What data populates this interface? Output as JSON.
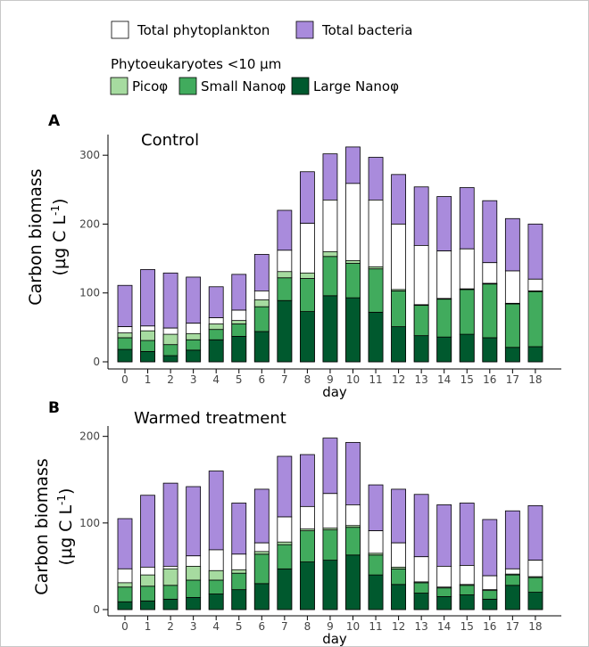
{
  "legend": {
    "total_phyto": "Total phytoplankton",
    "total_bact": "Total bacteria",
    "group_title": "Phytoeukaryotes <10 µm",
    "pico": "Picoφ",
    "small": "Small Nanoφ",
    "large": "Large Nanoφ"
  },
  "colors": {
    "total_phyto": "#ffffff",
    "total_bact": "#a98bdc",
    "pico": "#a6dba0",
    "small": "#41ab5d",
    "large": "#00592e"
  },
  "chart_data": [
    {
      "type": "bar",
      "panel_label": "A",
      "title": "Control",
      "xlabel": "day",
      "ylabel_line1": "Carbon biomass",
      "ylabel_line2": "(µg C L",
      "ylabel_sup": "-1",
      "ylabel_end": ")",
      "ylim": [
        0,
        330
      ],
      "yticks": [
        0,
        100,
        200,
        300
      ],
      "categories": [
        "0",
        "1",
        "2",
        "3",
        "4",
        "5",
        "6",
        "7",
        "8",
        "9",
        "10",
        "11",
        "12",
        "13",
        "14",
        "15",
        "16",
        "17",
        "18"
      ],
      "series": [
        {
          "name": "Total bacteria",
          "values": [
            111,
            134,
            129,
            123,
            109,
            127,
            156,
            220,
            276,
            302,
            312,
            297,
            272,
            254,
            240,
            253,
            234,
            208,
            200
          ]
        },
        {
          "name": "Total phytoplankton",
          "values": [
            51,
            52,
            49,
            56,
            64,
            75,
            103,
            162,
            201,
            235,
            259,
            235,
            200,
            169,
            161,
            164,
            144,
            132,
            120
          ]
        },
        {
          "name": "Large Nanoφ",
          "values": [
            18,
            15,
            9,
            17,
            32,
            37,
            44,
            89,
            73,
            96,
            93,
            72,
            51,
            38,
            36,
            40,
            35,
            21,
            22
          ]
        },
        {
          "name": "Small Nanoφ",
          "values": [
            17,
            16,
            16,
            15,
            15,
            18,
            36,
            33,
            48,
            57,
            50,
            63,
            52,
            44,
            55,
            65,
            78,
            63,
            80
          ]
        },
        {
          "name": "Picoφ",
          "values": [
            7,
            14,
            15,
            9,
            8,
            5,
            10,
            9,
            8,
            7,
            4,
            3,
            2,
            1,
            1,
            1,
            1,
            1,
            1
          ]
        }
      ]
    },
    {
      "type": "bar",
      "panel_label": "B",
      "title": "Warmed treatment",
      "xlabel": "day",
      "ylabel_line1": "Carbon biomass",
      "ylabel_line2": "(µg C L",
      "ylabel_sup": "-1",
      "ylabel_end": ")",
      "ylim": [
        0,
        212
      ],
      "yticks": [
        0,
        100,
        200
      ],
      "categories": [
        "0",
        "1",
        "2",
        "3",
        "4",
        "5",
        "6",
        "7",
        "8",
        "9",
        "10",
        "11",
        "12",
        "13",
        "14",
        "15",
        "16",
        "17",
        "18"
      ],
      "series": [
        {
          "name": "Total bacteria",
          "values": [
            105,
            132,
            146,
            142,
            160,
            123,
            139,
            177,
            179,
            198,
            193,
            144,
            139,
            133,
            121,
            123,
            104,
            114,
            120
          ]
        },
        {
          "name": "Total phytoplankton",
          "values": [
            47,
            49,
            50,
            62,
            69,
            64,
            77,
            107,
            119,
            134,
            121,
            91,
            77,
            61,
            50,
            51,
            39,
            47,
            57
          ]
        },
        {
          "name": "Large Nanoφ",
          "values": [
            9,
            10,
            12,
            14,
            18,
            23,
            30,
            47,
            55,
            57,
            63,
            40,
            29,
            19,
            15,
            17,
            12,
            28,
            20
          ]
        },
        {
          "name": "Small Nanoφ",
          "values": [
            17,
            17,
            16,
            20,
            16,
            19,
            34,
            28,
            36,
            35,
            32,
            23,
            18,
            12,
            10,
            11,
            10,
            12,
            17
          ]
        },
        {
          "name": "Picoφ",
          "values": [
            5,
            13,
            19,
            16,
            11,
            4,
            3,
            3,
            2,
            2,
            2,
            2,
            2,
            1,
            1,
            1,
            1,
            1,
            1
          ]
        }
      ]
    }
  ]
}
